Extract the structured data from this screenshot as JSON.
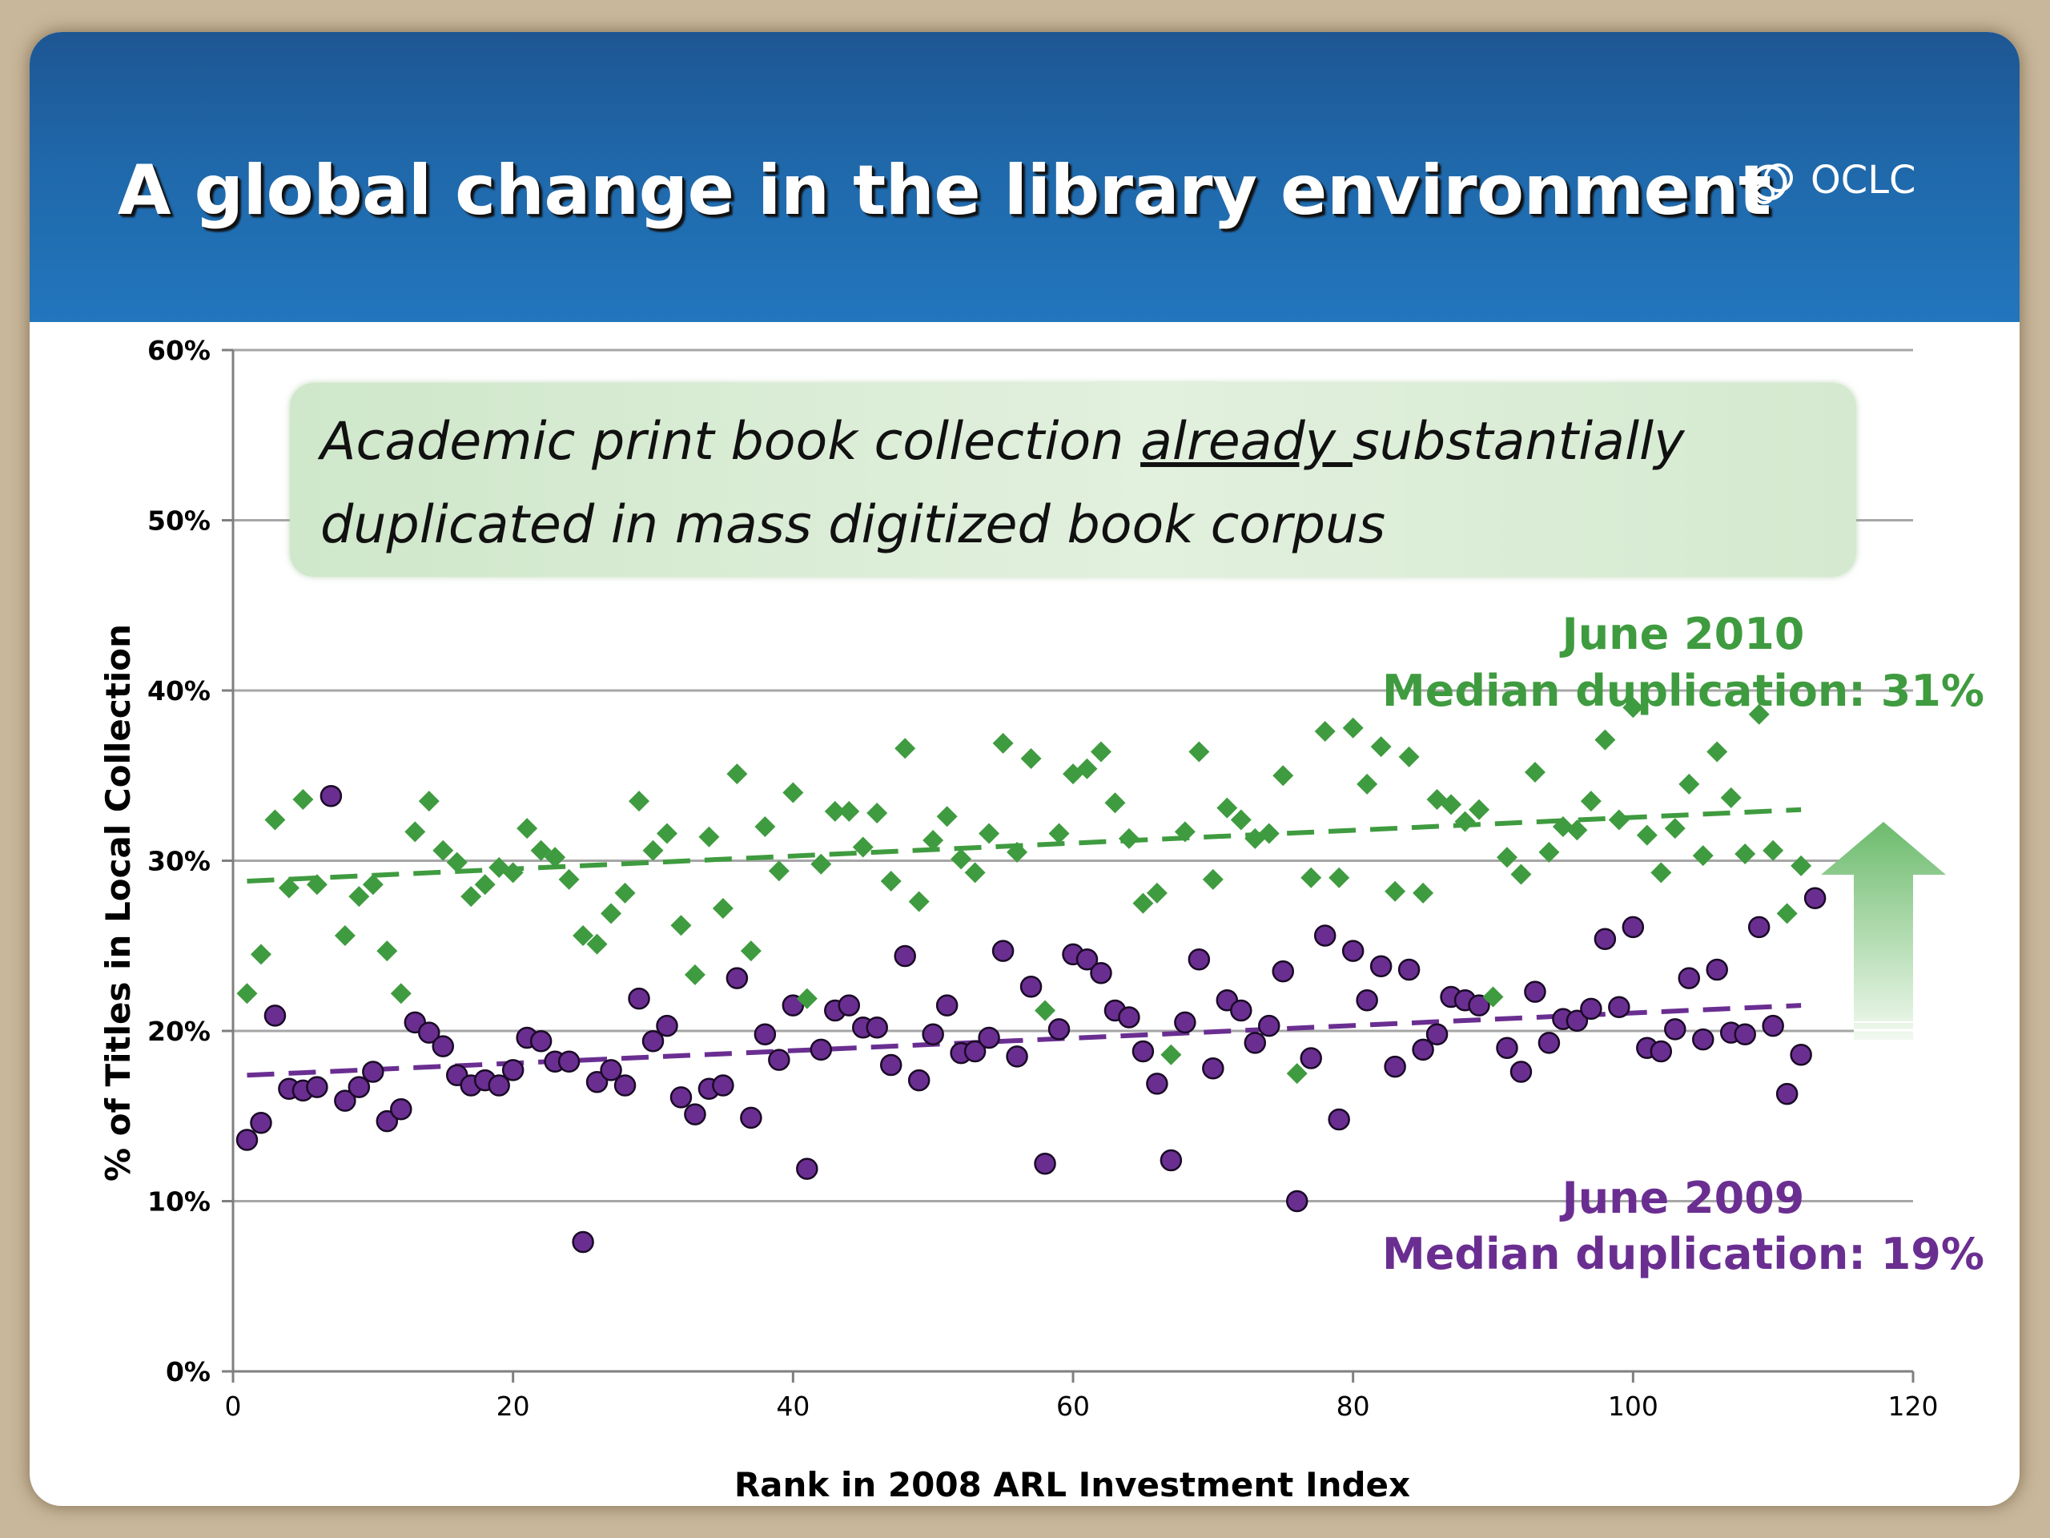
{
  "slide": {
    "title": "A global change in the library environment",
    "logo_text": "OCLC"
  },
  "callout": {
    "line1_before": "Academic print book collection ",
    "line1_emphasis": "already ",
    "line1_after": "substantially",
    "line2": "duplicated in mass digitized book corpus"
  },
  "annotations": {
    "june2010_title": "June 2010",
    "june2010_median": "Median duplication: 31%",
    "june2009_title": "June 2009",
    "june2009_median": "Median duplication: 19%"
  },
  "colors": {
    "banner": "#1f68aa",
    "series_2010": "#3f9b3f",
    "series_2009": "#6a2e91",
    "gridline": "#a6a6a6",
    "arrow": "#8fca8f"
  },
  "icons": {
    "logo": "oclc-logo-icon",
    "arrow": "up-arrow-icon"
  },
  "chart_data": {
    "type": "scatter",
    "title": "",
    "xlabel": "Rank in 2008 ARL Investment Index",
    "ylabel": "% of Titles in Local Collection",
    "xlim": [
      0,
      120
    ],
    "ylim": [
      0,
      60
    ],
    "x_ticks": [
      "0",
      "20",
      "40",
      "60",
      "80",
      "100",
      "120"
    ],
    "y_ticks": [
      "0%",
      "10%",
      "20%",
      "30%",
      "40%",
      "50%",
      "60%"
    ],
    "grid": "horizontal",
    "legend": "none",
    "series": [
      {
        "name": "June 2010",
        "marker": "diamond",
        "points": [
          [
            1,
            22.2
          ],
          [
            2,
            24.5
          ],
          [
            3,
            32.4
          ],
          [
            4,
            28.4
          ],
          [
            5,
            33.6
          ],
          [
            6,
            28.6
          ],
          [
            8,
            25.6
          ],
          [
            9,
            27.9
          ],
          [
            10,
            28.6
          ],
          [
            11,
            24.7
          ],
          [
            12,
            22.2
          ],
          [
            13,
            31.7
          ],
          [
            14,
            33.5
          ],
          [
            15,
            30.6
          ],
          [
            16,
            29.9
          ],
          [
            17,
            27.9
          ],
          [
            18,
            28.6
          ],
          [
            19,
            29.6
          ],
          [
            20,
            29.3
          ],
          [
            21,
            31.9
          ],
          [
            22,
            30.6
          ],
          [
            23,
            30.2
          ],
          [
            24,
            28.9
          ],
          [
            25,
            25.6
          ],
          [
            26,
            25.1
          ],
          [
            27,
            26.9
          ],
          [
            28,
            28.1
          ],
          [
            29,
            33.5
          ],
          [
            30,
            30.6
          ],
          [
            31,
            31.6
          ],
          [
            32,
            26.2
          ],
          [
            33,
            23.3
          ],
          [
            34,
            31.4
          ],
          [
            35,
            27.2
          ],
          [
            36,
            35.1
          ],
          [
            37,
            24.7
          ],
          [
            38,
            32.0
          ],
          [
            39,
            29.4
          ],
          [
            40,
            34.0
          ],
          [
            41,
            21.9
          ],
          [
            42,
            29.8
          ],
          [
            43,
            32.9
          ],
          [
            44,
            32.9
          ],
          [
            45,
            30.8
          ],
          [
            46,
            32.8
          ],
          [
            47,
            28.8
          ],
          [
            48,
            36.6
          ],
          [
            49,
            27.6
          ],
          [
            50,
            31.2
          ],
          [
            51,
            32.6
          ],
          [
            52,
            30.1
          ],
          [
            53,
            29.3
          ],
          [
            54,
            31.6
          ],
          [
            55,
            36.9
          ],
          [
            56,
            30.5
          ],
          [
            57,
            36.0
          ],
          [
            58,
            21.2
          ],
          [
            59,
            31.6
          ],
          [
            60,
            35.1
          ],
          [
            61,
            35.4
          ],
          [
            62,
            36.4
          ],
          [
            63,
            33.4
          ],
          [
            64,
            31.3
          ],
          [
            65,
            27.5
          ],
          [
            66,
            28.1
          ],
          [
            67,
            18.6
          ],
          [
            68,
            31.7
          ],
          [
            69,
            36.4
          ],
          [
            70,
            28.9
          ],
          [
            71,
            33.1
          ],
          [
            72,
            32.4
          ],
          [
            73,
            31.3
          ],
          [
            74,
            31.6
          ],
          [
            75,
            35.0
          ],
          [
            76,
            17.5
          ],
          [
            77,
            29.0
          ],
          [
            78,
            37.6
          ],
          [
            79,
            29.0
          ],
          [
            80,
            37.8
          ],
          [
            81,
            34.5
          ],
          [
            82,
            36.7
          ],
          [
            83,
            28.2
          ],
          [
            84,
            36.1
          ],
          [
            85,
            28.1
          ],
          [
            86,
            33.6
          ],
          [
            87,
            33.3
          ],
          [
            88,
            32.3
          ],
          [
            89,
            33.0
          ],
          [
            90,
            22.0
          ],
          [
            91,
            30.2
          ],
          [
            92,
            29.2
          ],
          [
            93,
            35.2
          ],
          [
            94,
            30.5
          ],
          [
            95,
            32.0
          ],
          [
            96,
            31.8
          ],
          [
            97,
            33.5
          ],
          [
            98,
            37.1
          ],
          [
            99,
            32.4
          ],
          [
            100,
            39.0
          ],
          [
            101,
            31.5
          ],
          [
            102,
            29.3
          ],
          [
            103,
            31.9
          ],
          [
            104,
            34.5
          ],
          [
            105,
            30.3
          ],
          [
            106,
            36.4
          ],
          [
            107,
            33.7
          ],
          [
            108,
            30.4
          ],
          [
            109,
            38.6
          ],
          [
            110,
            30.6
          ],
          [
            111,
            26.9
          ],
          [
            112,
            29.7
          ]
        ],
        "trend": {
          "x0": 1,
          "y0": 28.8,
          "x1": 112,
          "y1": 33.0
        }
      },
      {
        "name": "June 2009",
        "marker": "circle",
        "points": [
          [
            1,
            13.6
          ],
          [
            2,
            14.6
          ],
          [
            3,
            20.9
          ],
          [
            4,
            16.6
          ],
          [
            5,
            16.5
          ],
          [
            6,
            16.7
          ],
          [
            7,
            33.8
          ],
          [
            8,
            15.9
          ],
          [
            9,
            16.7
          ],
          [
            10,
            17.6
          ],
          [
            11,
            14.7
          ],
          [
            12,
            15.4
          ],
          [
            13,
            20.5
          ],
          [
            14,
            19.9
          ],
          [
            15,
            19.1
          ],
          [
            16,
            17.4
          ],
          [
            17,
            16.8
          ],
          [
            18,
            17.1
          ],
          [
            19,
            16.8
          ],
          [
            20,
            17.7
          ],
          [
            21,
            19.6
          ],
          [
            22,
            19.4
          ],
          [
            23,
            18.2
          ],
          [
            24,
            18.2
          ],
          [
            25,
            7.6
          ],
          [
            26,
            17.0
          ],
          [
            27,
            17.7
          ],
          [
            28,
            16.8
          ],
          [
            29,
            21.9
          ],
          [
            30,
            19.4
          ],
          [
            31,
            20.3
          ],
          [
            32,
            16.1
          ],
          [
            33,
            15.1
          ],
          [
            34,
            16.6
          ],
          [
            35,
            16.8
          ],
          [
            36,
            23.1
          ],
          [
            37,
            14.9
          ],
          [
            38,
            19.8
          ],
          [
            39,
            18.3
          ],
          [
            40,
            21.5
          ],
          [
            41,
            11.9
          ],
          [
            42,
            18.9
          ],
          [
            43,
            21.2
          ],
          [
            44,
            21.5
          ],
          [
            45,
            20.2
          ],
          [
            46,
            20.2
          ],
          [
            47,
            18.0
          ],
          [
            48,
            24.4
          ],
          [
            49,
            17.1
          ],
          [
            50,
            19.8
          ],
          [
            51,
            21.5
          ],
          [
            52,
            18.7
          ],
          [
            53,
            18.8
          ],
          [
            54,
            19.6
          ],
          [
            55,
            24.7
          ],
          [
            56,
            18.5
          ],
          [
            57,
            22.6
          ],
          [
            58,
            12.2
          ],
          [
            59,
            20.1
          ],
          [
            60,
            24.5
          ],
          [
            61,
            24.2
          ],
          [
            62,
            23.4
          ],
          [
            63,
            21.2
          ],
          [
            64,
            20.8
          ],
          [
            65,
            18.8
          ],
          [
            66,
            16.9
          ],
          [
            67,
            12.4
          ],
          [
            68,
            20.5
          ],
          [
            69,
            24.2
          ],
          [
            70,
            17.8
          ],
          [
            71,
            21.8
          ],
          [
            72,
            21.2
          ],
          [
            73,
            19.3
          ],
          [
            74,
            20.3
          ],
          [
            75,
            23.5
          ],
          [
            76,
            10.0
          ],
          [
            77,
            18.4
          ],
          [
            78,
            25.6
          ],
          [
            79,
            14.8
          ],
          [
            80,
            24.7
          ],
          [
            81,
            21.8
          ],
          [
            82,
            23.8
          ],
          [
            83,
            17.9
          ],
          [
            84,
            23.6
          ],
          [
            85,
            18.9
          ],
          [
            86,
            19.8
          ],
          [
            87,
            22.0
          ],
          [
            88,
            21.8
          ],
          [
            89,
            21.5
          ],
          [
            91,
            19.0
          ],
          [
            92,
            17.6
          ],
          [
            93,
            22.3
          ],
          [
            94,
            19.3
          ],
          [
            95,
            20.7
          ],
          [
            96,
            20.6
          ],
          [
            97,
            21.3
          ],
          [
            98,
            25.4
          ],
          [
            99,
            21.4
          ],
          [
            100,
            26.1
          ],
          [
            101,
            19.0
          ],
          [
            102,
            18.8
          ],
          [
            103,
            20.1
          ],
          [
            104,
            23.1
          ],
          [
            105,
            19.5
          ],
          [
            106,
            23.6
          ],
          [
            107,
            19.9
          ],
          [
            108,
            19.8
          ],
          [
            109,
            26.1
          ],
          [
            110,
            20.3
          ],
          [
            111,
            16.3
          ],
          [
            112,
            18.6
          ],
          [
            113,
            27.8
          ]
        ],
        "trend": {
          "x0": 1,
          "y0": 17.4,
          "x1": 112,
          "y1": 21.5
        }
      }
    ]
  }
}
